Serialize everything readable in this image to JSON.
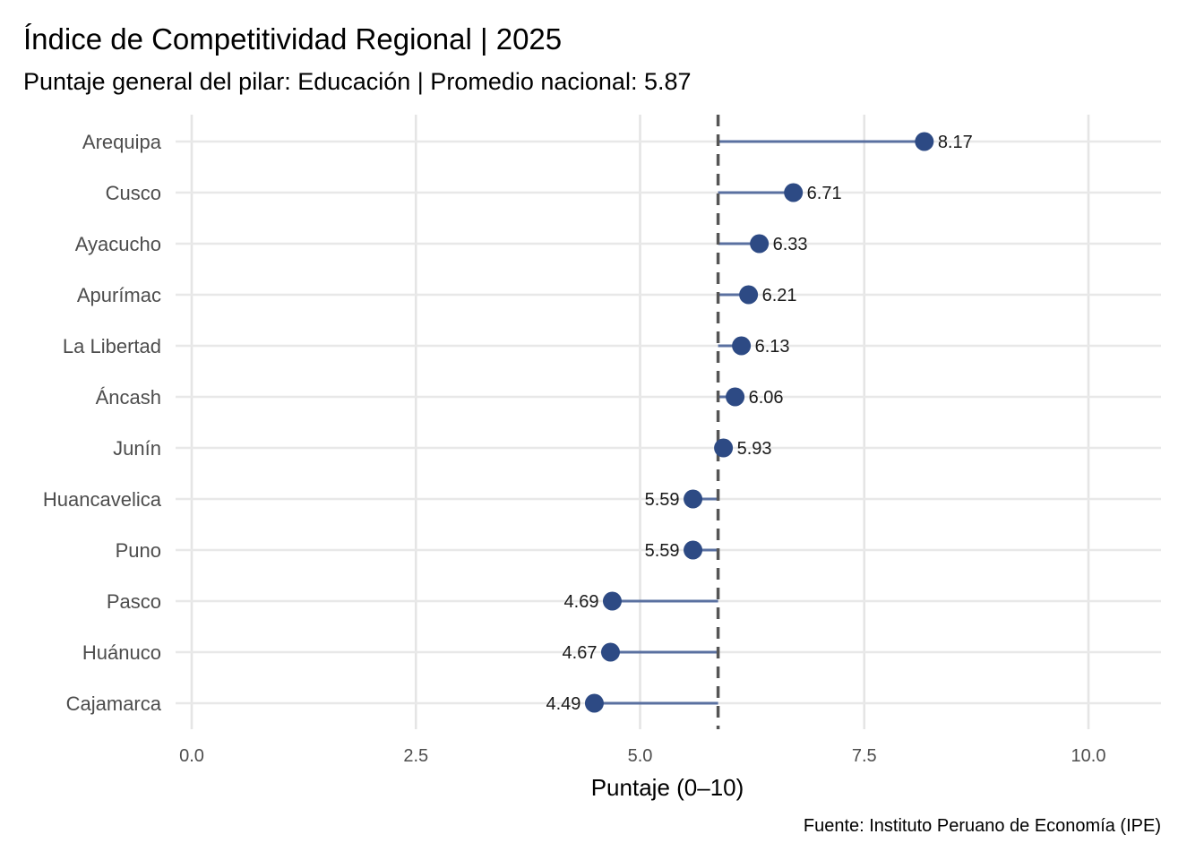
{
  "colors": {
    "point": "#2d4a84",
    "segment": "#5a70a0",
    "mean_line": "#555555",
    "grid": "#e5e5e5"
  },
  "chart_data": {
    "type": "lollipop",
    "title": "Índice de Competitividad Regional | 2025",
    "subtitle": "Puntaje general del pilar: Educación | Promedio nacional: 5.87",
    "xlabel": "Puntaje (0–10)",
    "ylabel": "",
    "caption": "Fuente: Instituto Peruano de Economía (IPE)",
    "xlim": [
      0,
      10.8
    ],
    "xticks": [
      0,
      2.5,
      5,
      7.5,
      10
    ],
    "xtick_labels": [
      "0.0",
      "2.5",
      "5.0",
      "7.5",
      "10.0"
    ],
    "reference_line": 5.87,
    "categories": [
      "Arequipa",
      "Cusco",
      "Ayacucho",
      "Apurímac",
      "La Libertad",
      "Áncash",
      "Junín",
      "Huancavelica",
      "Puno",
      "Pasco",
      "Huánuco",
      "Cajamarca"
    ],
    "values": [
      8.17,
      6.71,
      6.33,
      6.21,
      6.13,
      6.06,
      5.93,
      5.59,
      5.59,
      4.69,
      4.67,
      4.49
    ],
    "value_labels": [
      "8.17",
      "6.71",
      "6.33",
      "6.21",
      "6.13",
      "6.06",
      "5.93",
      "5.59",
      "5.59",
      "4.69",
      "4.67",
      "4.49"
    ],
    "grid": true,
    "legend": "none"
  }
}
